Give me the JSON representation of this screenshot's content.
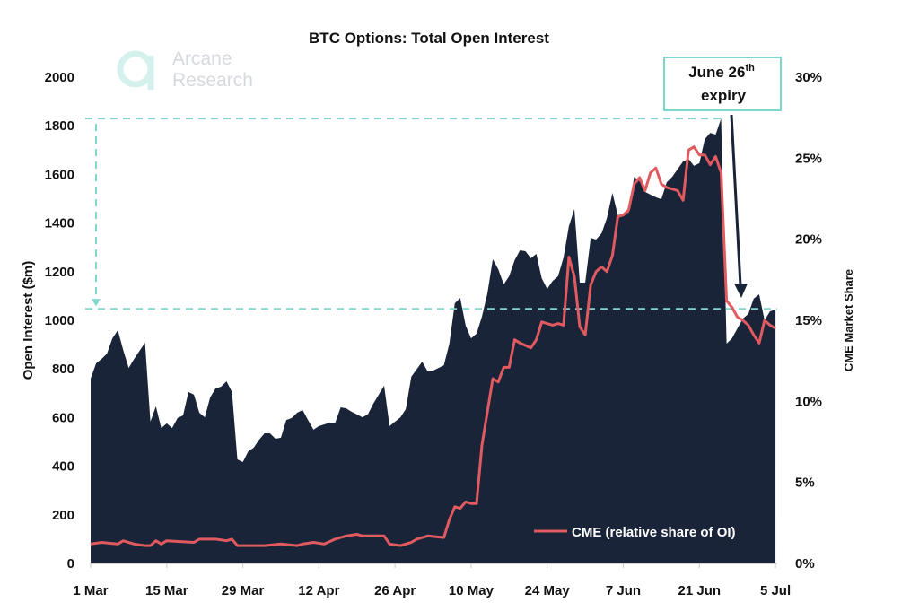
{
  "logo": {
    "line1": "Arcane",
    "line2": "Research"
  },
  "colors": {
    "area": "#1a2438",
    "line": "#e05a5f",
    "reference": "#7fd6cf",
    "arrow": "#1a2438"
  },
  "annotation": {
    "text": "June 26",
    "sup": "th",
    "line2": "expiry",
    "target_date": "26 Jun"
  },
  "chart_data": {
    "type": "area",
    "title": "BTC Options: Total Open Interest",
    "ylabel": "Open Interest ($m)",
    "y2label": "CME Market Share",
    "xlabel": "",
    "ylim": [
      0,
      2000
    ],
    "y2lim": [
      0,
      30
    ],
    "yticks": [
      "0",
      "200",
      "400",
      "600",
      "800",
      "1000",
      "1200",
      "1400",
      "1600",
      "1800",
      "2000"
    ],
    "y2ticks": [
      "0%",
      "5%",
      "10%",
      "15%",
      "20%",
      "25%",
      "30%"
    ],
    "xticks": [
      "1 Mar",
      "15 Mar",
      "29 Mar",
      "12 Apr",
      "26 Apr",
      "10 May",
      "24 May",
      "7 Jun",
      "21 Jun",
      "5 Jul"
    ],
    "grid": false,
    "legend_position": "bottom-right",
    "reference_levels": [
      1830,
      1047
    ],
    "series": [
      {
        "type": "area",
        "axis": "left",
        "points": [
          [
            "1 Mar",
            760
          ],
          [
            "2 Mar",
            823
          ],
          [
            "3 Mar",
            841
          ],
          [
            "4 Mar",
            863
          ],
          [
            "5 Mar",
            926
          ],
          [
            "6 Mar",
            959
          ],
          [
            "7 Mar",
            878
          ],
          [
            "8 Mar",
            804
          ],
          [
            "9 Mar",
            841
          ],
          [
            "11 Mar",
            908
          ],
          [
            "12 Mar",
            583
          ],
          [
            "13 Mar",
            646
          ],
          [
            "14 Mar",
            557
          ],
          [
            "15 Mar",
            576
          ],
          [
            "16 Mar",
            557
          ],
          [
            "17 Mar",
            598
          ],
          [
            "18 Mar",
            609
          ],
          [
            "19 Mar",
            705
          ],
          [
            "20 Mar",
            694
          ],
          [
            "21 Mar",
            620
          ],
          [
            "22 Mar",
            601
          ],
          [
            "23 Mar",
            683
          ],
          [
            "24 Mar",
            720
          ],
          [
            "25 Mar",
            727
          ],
          [
            "26 Mar",
            749
          ],
          [
            "27 Mar",
            705
          ],
          [
            "28 Mar",
            428
          ],
          [
            "29 Mar",
            417
          ],
          [
            "30 Mar",
            461
          ],
          [
            "31 Mar",
            476
          ],
          [
            "1 Apr",
            509
          ],
          [
            "2 Apr",
            535
          ],
          [
            "3 Apr",
            535
          ],
          [
            "4 Apr",
            513
          ],
          [
            "5 Apr",
            517
          ],
          [
            "6 Apr",
            590
          ],
          [
            "7 Apr",
            598
          ],
          [
            "8 Apr",
            620
          ],
          [
            "9 Apr",
            631
          ],
          [
            "10 Apr",
            590
          ],
          [
            "11 Apr",
            550
          ],
          [
            "12 Apr",
            565
          ],
          [
            "13 Apr",
            572
          ],
          [
            "14 Apr",
            579
          ],
          [
            "15 Apr",
            579
          ],
          [
            "16 Apr",
            642
          ],
          [
            "17 Apr",
            638
          ],
          [
            "18 Apr",
            624
          ],
          [
            "19 Apr",
            613
          ],
          [
            "20 Apr",
            601
          ],
          [
            "21 Apr",
            613
          ],
          [
            "22 Apr",
            657
          ],
          [
            "23 Apr",
            694
          ],
          [
            "24 Apr",
            731
          ],
          [
            "25 Apr",
            565
          ],
          [
            "27 Apr",
            601
          ],
          [
            "28 Apr",
            635
          ],
          [
            "29 Apr",
            768
          ],
          [
            "1 May",
            830
          ],
          [
            "2 May",
            790
          ],
          [
            "3 May",
            793
          ],
          [
            "5 May",
            815
          ],
          [
            "6 May",
            904
          ],
          [
            "7 May",
            1070
          ],
          [
            "8 May",
            1092
          ],
          [
            "9 May",
            978
          ],
          [
            "10 May",
            926
          ],
          [
            "11 May",
            945
          ],
          [
            "12 May",
            1015
          ],
          [
            "13 May",
            1111
          ],
          [
            "14 May",
            1251
          ],
          [
            "15 May",
            1210
          ],
          [
            "16 May",
            1148
          ],
          [
            "17 May",
            1181
          ],
          [
            "18 May",
            1247
          ],
          [
            "19 May",
            1288
          ],
          [
            "20 May",
            1284
          ],
          [
            "21 May",
            1255
          ],
          [
            "22 May",
            1273
          ],
          [
            "23 May",
            1173
          ],
          [
            "24 May",
            1129
          ],
          [
            "25 May",
            1162
          ],
          [
            "26 May",
            1181
          ],
          [
            "27 May",
            1258
          ],
          [
            "28 May",
            1387
          ],
          [
            "29 May",
            1458
          ],
          [
            "30 May",
            1155
          ],
          [
            "31 May",
            1155
          ],
          [
            "1 Jun",
            1339
          ],
          [
            "2 Jun",
            1332
          ],
          [
            "3 Jun",
            1358
          ],
          [
            "4 Jun",
            1421
          ],
          [
            "5 Jun",
            1524
          ],
          [
            "6 Jun",
            1432
          ],
          [
            "8 Jun",
            1443
          ],
          [
            "9 Jun",
            1590
          ],
          [
            "10 Jun",
            1572
          ],
          [
            "11 Jun",
            1528
          ],
          [
            "13 Jun",
            1506
          ],
          [
            "14 Jun",
            1498
          ],
          [
            "15 Jun",
            1568
          ],
          [
            "16 Jun",
            1590
          ],
          [
            "18 Jun",
            1653
          ],
          [
            "19 Jun",
            1664
          ],
          [
            "20 Jun",
            1635
          ],
          [
            "21 Jun",
            1646
          ],
          [
            "22 Jun",
            1745
          ],
          [
            "23 Jun",
            1771
          ],
          [
            "24 Jun",
            1764
          ],
          [
            "25 Jun",
            1830
          ],
          [
            "26 Jun",
            904
          ],
          [
            "27 Jun",
            926
          ],
          [
            "29 Jun",
            1007
          ],
          [
            "30 Jun",
            1026
          ],
          [
            "1 Jul",
            1089
          ],
          [
            "2 Jul",
            1107
          ],
          [
            "3 Jul",
            1000
          ],
          [
            "4 Jul",
            1037
          ],
          [
            "5 Jul",
            1044
          ]
        ]
      },
      {
        "type": "line",
        "axis": "right",
        "name": "CME (relative share of OI)",
        "points": [
          [
            "1 Mar",
            1.2
          ],
          [
            "3 Mar",
            1.3
          ],
          [
            "6 Mar",
            1.2
          ],
          [
            "7 Mar",
            1.4
          ],
          [
            "9 Mar",
            1.2
          ],
          [
            "11 Mar",
            1.1
          ],
          [
            "12 Mar",
            1.1
          ],
          [
            "13 Mar",
            1.4
          ],
          [
            "14 Mar",
            1.2
          ],
          [
            "15 Mar",
            1.4
          ],
          [
            "20 Mar",
            1.3
          ],
          [
            "21 Mar",
            1.5
          ],
          [
            "24 Mar",
            1.5
          ],
          [
            "26 Mar",
            1.4
          ],
          [
            "27 Mar",
            1.5
          ],
          [
            "28 Mar",
            1.1
          ],
          [
            "31 Mar",
            1.1
          ],
          [
            "2 Apr",
            1.1
          ],
          [
            "5 Apr",
            1.2
          ],
          [
            "8 Apr",
            1.1
          ],
          [
            "9 Apr",
            1.2
          ],
          [
            "11 Apr",
            1.3
          ],
          [
            "13 Apr",
            1.2
          ],
          [
            "15 Apr",
            1.5
          ],
          [
            "17 Apr",
            1.7
          ],
          [
            "19 Apr",
            1.8
          ],
          [
            "20 Apr",
            1.7
          ],
          [
            "22 Apr",
            1.7
          ],
          [
            "24 Apr",
            1.7
          ],
          [
            "25 Apr",
            1.2
          ],
          [
            "27 Apr",
            1.1
          ],
          [
            "29 Apr",
            1.3
          ],
          [
            "30 Apr",
            1.5
          ],
          [
            "2 May",
            1.7
          ],
          [
            "5 May",
            1.6
          ],
          [
            "6 May",
            2.7
          ],
          [
            "7 May",
            3.5
          ],
          [
            "8 May",
            3.4
          ],
          [
            "9 May",
            3.8
          ],
          [
            "10 May",
            3.7
          ],
          [
            "11 May",
            3.7
          ],
          [
            "12 May",
            7.3
          ],
          [
            "14 May",
            11.4
          ],
          [
            "15 May",
            11.2
          ],
          [
            "16 May",
            12.1
          ],
          [
            "17 May",
            12.1
          ],
          [
            "18 May",
            13.8
          ],
          [
            "19 May",
            13.6
          ],
          [
            "21 May",
            13.3
          ],
          [
            "22 May",
            13.8
          ],
          [
            "23 May",
            14.9
          ],
          [
            "25 May",
            14.7
          ],
          [
            "26 May",
            14.8
          ],
          [
            "27 May",
            14.7
          ],
          [
            "28 May",
            18.9
          ],
          [
            "29 May",
            17.7
          ],
          [
            "30 May",
            14.6
          ],
          [
            "31 May",
            14.1
          ],
          [
            "1 Jun",
            17.2
          ],
          [
            "2 Jun",
            18.0
          ],
          [
            "3 Jun",
            18.3
          ],
          [
            "4 Jun",
            18.0
          ],
          [
            "5 Jun",
            19.0
          ],
          [
            "6 Jun",
            21.4
          ],
          [
            "7 Jun",
            21.5
          ],
          [
            "8 Jun",
            21.8
          ],
          [
            "9 Jun",
            23.4
          ],
          [
            "10 Jun",
            23.8
          ],
          [
            "11 Jun",
            23.0
          ],
          [
            "12 Jun",
            24.1
          ],
          [
            "13 Jun",
            24.4
          ],
          [
            "14 Jun",
            23.4
          ],
          [
            "15 Jun",
            23.2
          ],
          [
            "16 Jun",
            23.1
          ],
          [
            "17 Jun",
            23.0
          ],
          [
            "18 Jun",
            22.4
          ],
          [
            "19 Jun",
            25.5
          ],
          [
            "20 Jun",
            25.7
          ],
          [
            "21 Jun",
            25.2
          ],
          [
            "22 Jun",
            25.2
          ],
          [
            "23 Jun",
            24.6
          ],
          [
            "24 Jun",
            25.1
          ],
          [
            "25 Jun",
            24.1
          ],
          [
            "26 Jun",
            16.2
          ],
          [
            "27 Jun",
            15.8
          ],
          [
            "28 Jun",
            15.2
          ],
          [
            "29 Jun",
            15.0
          ],
          [
            "30 Jun",
            14.7
          ],
          [
            "1 Jul",
            14.1
          ],
          [
            "2 Jul",
            13.6
          ],
          [
            "3 Jul",
            15.0
          ],
          [
            "4 Jul",
            14.7
          ],
          [
            "5 Jul",
            14.5
          ]
        ]
      }
    ]
  }
}
